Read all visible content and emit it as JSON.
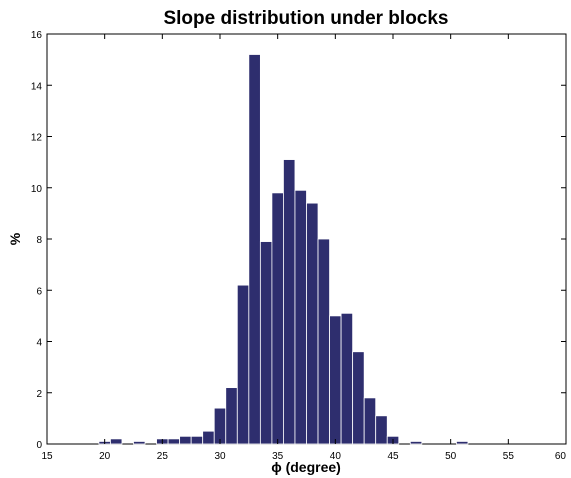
{
  "chart_data": {
    "type": "bar",
    "title": "Slope distribution under blocks",
    "xlabel": "ϕ (degree)",
    "ylabel": "%",
    "xlim": [
      15,
      60
    ],
    "ylim": [
      0,
      16
    ],
    "xticks": [
      15,
      20,
      25,
      30,
      35,
      40,
      45,
      50,
      55,
      60
    ],
    "yticks": [
      0,
      2,
      4,
      6,
      8,
      10,
      12,
      14,
      16
    ],
    "bin_width": 1,
    "bar_color": "#2e2e6e",
    "grid": false,
    "bins": [
      {
        "x": 20,
        "value": 0.1
      },
      {
        "x": 21,
        "value": 0.2
      },
      {
        "x": 23,
        "value": 0.1
      },
      {
        "x": 25,
        "value": 0.2
      },
      {
        "x": 26,
        "value": 0.2
      },
      {
        "x": 27,
        "value": 0.3
      },
      {
        "x": 28,
        "value": 0.3
      },
      {
        "x": 29,
        "value": 0.5
      },
      {
        "x": 30,
        "value": 1.4
      },
      {
        "x": 31,
        "value": 2.2
      },
      {
        "x": 32,
        "value": 6.2
      },
      {
        "x": 33,
        "value": 15.2
      },
      {
        "x": 34,
        "value": 7.9
      },
      {
        "x": 35,
        "value": 9.8
      },
      {
        "x": 36,
        "value": 11.1
      },
      {
        "x": 37,
        "value": 9.9
      },
      {
        "x": 38,
        "value": 9.4
      },
      {
        "x": 39,
        "value": 8.0
      },
      {
        "x": 40,
        "value": 5.0
      },
      {
        "x": 41,
        "value": 5.1
      },
      {
        "x": 42,
        "value": 3.6
      },
      {
        "x": 43,
        "value": 1.8
      },
      {
        "x": 44,
        "value": 1.1
      },
      {
        "x": 45,
        "value": 0.3
      },
      {
        "x": 47,
        "value": 0.1
      },
      {
        "x": 51,
        "value": 0.1
      }
    ]
  }
}
